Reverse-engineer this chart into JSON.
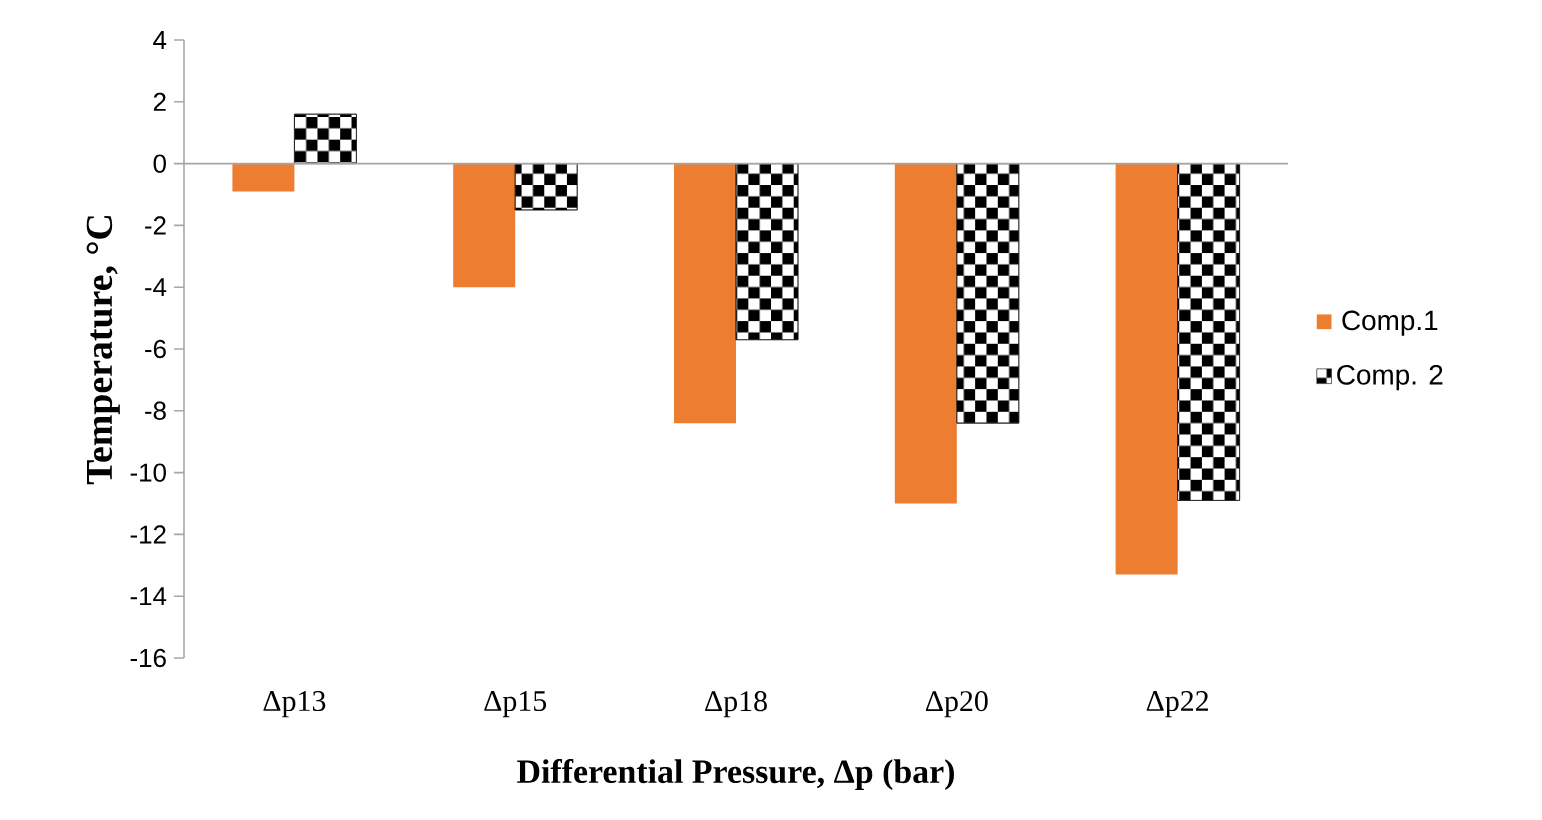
{
  "chart_data": {
    "type": "bar",
    "xlabel": "Differential Pressure, Δp (bar)",
    "ylabel": "Temperature,  °C",
    "categories": [
      "Δp13",
      "Δp15",
      "Δp18",
      "Δp20",
      "Δp22"
    ],
    "series": [
      {
        "name": "Comp.1",
        "color": "#ed7d31",
        "values": [
          -0.9,
          -4.0,
          -8.4,
          -11.0,
          -13.3
        ]
      },
      {
        "name": "Comp. 2",
        "color": "#000000",
        "values": [
          1.6,
          -1.5,
          -5.7,
          -8.4,
          -10.9
        ]
      }
    ],
    "ylim": [
      -16,
      4
    ],
    "yticks": [
      -16,
      -14,
      -12,
      -10,
      -8,
      -6,
      -4,
      -2,
      0,
      2,
      4
    ],
    "legend": "right"
  }
}
